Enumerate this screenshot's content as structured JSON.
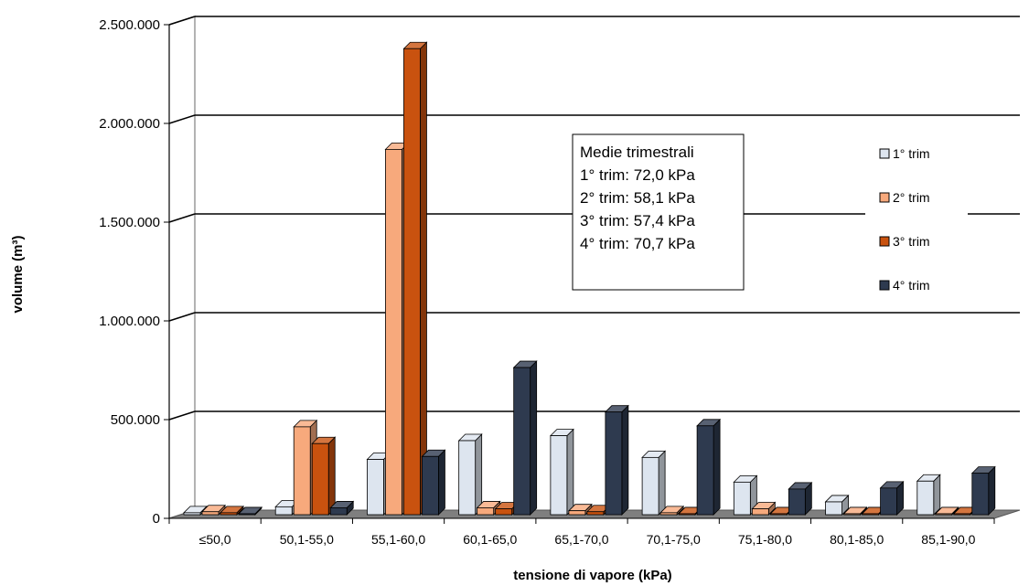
{
  "chart_data": {
    "type": "bar",
    "title": "",
    "xlabel": "tensione di vapore (kPa)",
    "ylabel": "volume (m³)",
    "ylim": [
      0,
      2500000
    ],
    "yticks": [
      0,
      500000,
      1000000,
      1500000,
      2000000,
      2500000
    ],
    "ytick_labels": [
      "0",
      "500.000",
      "1.000.000",
      "1.500.000",
      "2.000.000",
      "2.500.000"
    ],
    "categories": [
      "≤50,0",
      "50,1-55,0",
      "55,1-60,0",
      "60,1-65,0",
      "65,1-70,0",
      "70,1-75,0",
      "75,1-80,0",
      "80,1-85,0",
      "85,1-90,0"
    ],
    "series": [
      {
        "name": "1° trim",
        "color": "#dde5ef",
        "values": [
          10000,
          40000,
          280000,
          375000,
          400000,
          290000,
          165000,
          65000,
          170000
        ]
      },
      {
        "name": "2° trim",
        "color": "#f7a97c",
        "values": [
          15000,
          445000,
          1850000,
          35000,
          20000,
          10000,
          30000,
          5000,
          5000
        ]
      },
      {
        "name": "3° trim",
        "color": "#c9520f",
        "values": [
          10000,
          360000,
          2360000,
          30000,
          15000,
          5000,
          5000,
          5000,
          5000
        ]
      },
      {
        "name": "4° trim",
        "color": "#2e3a4f",
        "values": [
          5000,
          35000,
          295000,
          745000,
          520000,
          450000,
          130000,
          135000,
          210000
        ]
      }
    ],
    "grid": true,
    "legend_position": "right",
    "annotation": {
      "lines": [
        "Medie trimestrali",
        "1° trim: 72,0 kPa",
        "2° trim: 58,1 kPa",
        "3° trim: 57,4 kPa",
        "4° trim: 70,7 kPa"
      ]
    }
  }
}
